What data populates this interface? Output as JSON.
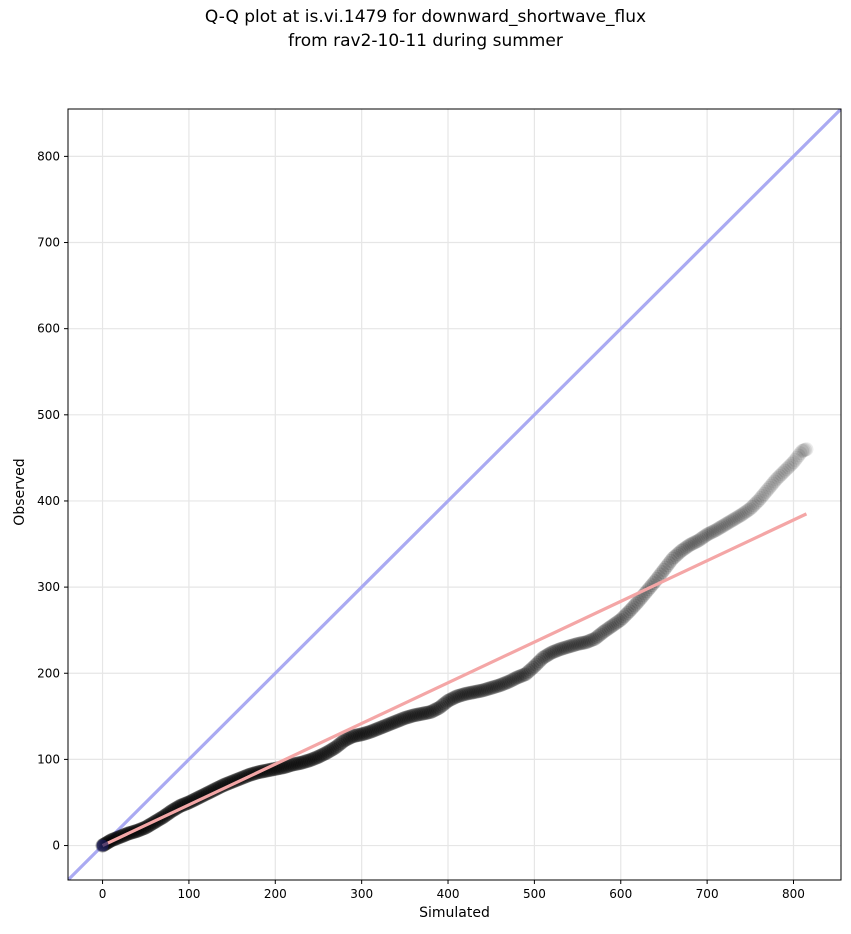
{
  "chart_data": {
    "type": "scatter",
    "title": "Q-Q plot at is.vi.1479 for downward_shortwave_flux",
    "subtitle": "from rav2-10-11 during summer",
    "xlabel": "Simulated",
    "ylabel": "Observed",
    "xlim": [
      -40,
      855
    ],
    "ylim": [
      -40,
      855
    ],
    "xticks": [
      0,
      100,
      200,
      300,
      400,
      500,
      600,
      700,
      800
    ],
    "yticks": [
      0,
      100,
      200,
      300,
      400,
      500,
      600,
      700,
      800
    ],
    "grid": true,
    "series": [
      {
        "kind": "points",
        "color": "#000000",
        "x": [
          0,
          5,
          10,
          20,
          30,
          40,
          50,
          60,
          70,
          80,
          90,
          100,
          110,
          120,
          130,
          140,
          150,
          160,
          170,
          180,
          190,
          200,
          210,
          220,
          230,
          240,
          250,
          260,
          270,
          280,
          290,
          300,
          310,
          320,
          330,
          340,
          350,
          360,
          370,
          380,
          390,
          400,
          410,
          420,
          430,
          440,
          450,
          460,
          470,
          480,
          490,
          500,
          510,
          520,
          530,
          540,
          550,
          560,
          570,
          580,
          590,
          600,
          610,
          620,
          630,
          640,
          650,
          660,
          670,
          680,
          690,
          700,
          710,
          720,
          730,
          740,
          750,
          760,
          770,
          780,
          790,
          800,
          810,
          815
        ],
        "y": [
          0,
          3,
          6,
          10,
          14,
          17,
          21,
          27,
          33,
          40,
          46,
          50,
          55,
          60,
          65,
          70,
          74,
          78,
          82,
          85,
          87,
          89,
          91,
          94,
          96,
          99,
          103,
          108,
          114,
          122,
          127,
          129,
          132,
          136,
          140,
          144,
          148,
          151,
          153,
          155,
          160,
          168,
          173,
          176,
          178,
          180,
          183,
          186,
          190,
          195,
          199,
          208,
          218,
          224,
          228,
          231,
          234,
          236,
          240,
          248,
          255,
          262,
          272,
          283,
          295,
          307,
          320,
          333,
          342,
          349,
          354,
          361,
          366,
          372,
          378,
          384,
          391,
          401,
          413,
          425,
          435,
          445,
          458,
          460
        ]
      },
      {
        "kind": "regression-line",
        "color": "#f4a6a6",
        "x": [
          0,
          815
        ],
        "y": [
          0,
          385
        ]
      },
      {
        "kind": "identity-line",
        "color": "#aaaaf2",
        "x": [
          -40,
          855
        ],
        "y": [
          -40,
          855
        ]
      }
    ]
  }
}
